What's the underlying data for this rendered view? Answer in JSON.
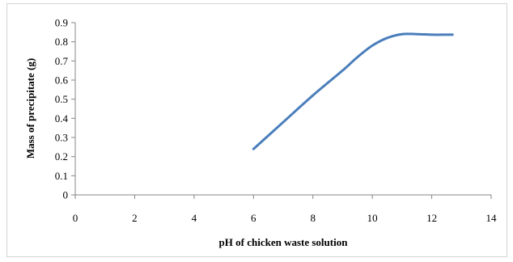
{
  "chart_data": {
    "type": "line",
    "title": "",
    "xlabel": "pH of chicken waste solution",
    "ylabel": "Mass of precipitate (g)",
    "xlim": [
      0,
      14
    ],
    "ylim": [
      0,
      0.9
    ],
    "xticks": [
      "0",
      "2",
      "4",
      "6",
      "8",
      "10",
      "12",
      "14"
    ],
    "yticks": [
      "0",
      "0.1",
      "0.2",
      "0.3",
      "0.4",
      "0.5",
      "0.6",
      "0.7",
      "0.8",
      "0.9"
    ],
    "grid": false,
    "legend": "none",
    "series": [
      {
        "color": "#4a7ebb",
        "x": [
          6,
          7,
          8,
          9,
          9.5,
          10,
          10.5,
          11,
          11.5,
          12,
          12.5,
          12.7
        ],
        "y": [
          0.24,
          0.38,
          0.52,
          0.65,
          0.72,
          0.78,
          0.82,
          0.84,
          0.84,
          0.837,
          0.837,
          0.837
        ]
      }
    ]
  }
}
